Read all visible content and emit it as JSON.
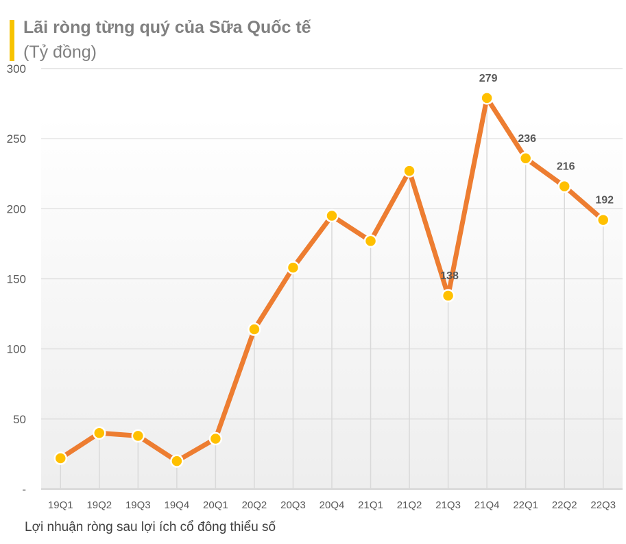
{
  "header": {
    "title": "Lãi ròng từng quý của Sữa Quốc tế",
    "subtitle": "(Tỷ đồng)"
  },
  "footer": {
    "caption": "Lợi nhuận ròng sau lợi ích cổ đông thiểu số"
  },
  "colors": {
    "line": "#ED7D31",
    "marker": "#FFC000",
    "accent_bar": "#F7C300"
  },
  "chart_data": {
    "type": "line",
    "title": "Lãi ròng từng quý của Sữa Quốc tế",
    "subtitle": "(Tỷ đồng)",
    "categories": [
      "19Q1",
      "19Q2",
      "19Q3",
      "19Q4",
      "20Q1",
      "20Q2",
      "20Q3",
      "20Q4",
      "21Q1",
      "21Q2",
      "21Q3",
      "21Q4",
      "22Q1",
      "22Q2",
      "22Q3"
    ],
    "series": [
      {
        "values": [
          22,
          40,
          38,
          20,
          36,
          114,
          158,
          195,
          177,
          227,
          138,
          279,
          236,
          216,
          192
        ]
      }
    ],
    "data_labels": [
      {
        "category": "21Q3",
        "text": "138"
      },
      {
        "category": "21Q4",
        "text": "279"
      },
      {
        "category": "22Q1",
        "text": "236"
      },
      {
        "category": "22Q2",
        "text": "216"
      },
      {
        "category": "22Q3",
        "text": "192"
      }
    ],
    "ylim": [
      0,
      300
    ],
    "yticks": [
      "-",
      "50",
      "100",
      "150",
      "200",
      "250",
      "300"
    ],
    "grid": true,
    "legend": "none"
  }
}
